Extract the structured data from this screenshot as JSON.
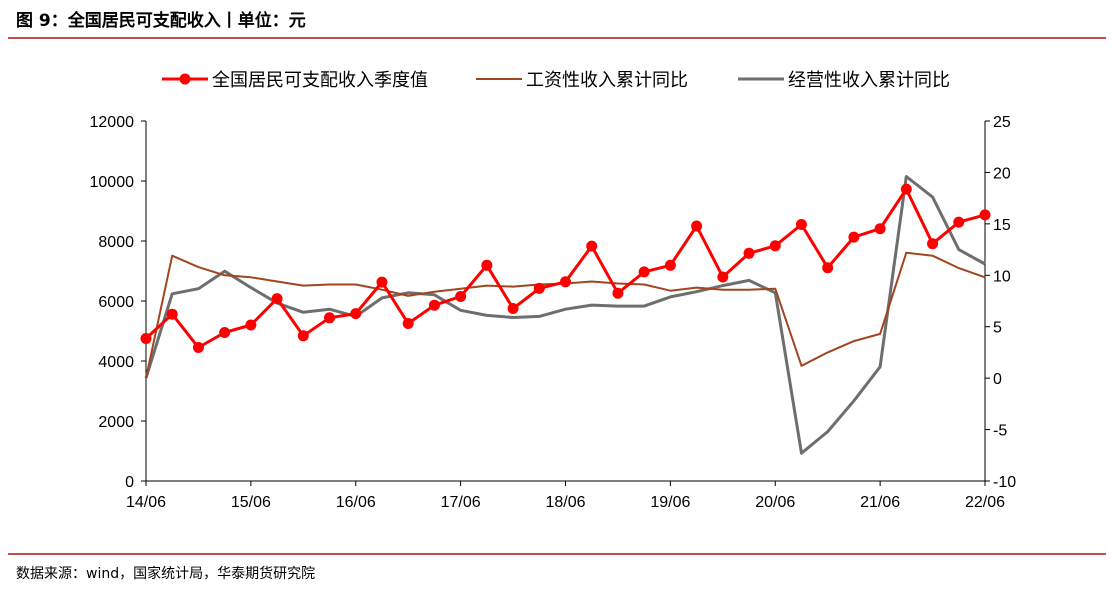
{
  "figure": {
    "title": "图 9：全国居民可支配收入丨单位：元",
    "source": "数据来源：wind，国家统计局，华泰期货研究院"
  },
  "chart_data": {
    "type": "line",
    "title": "",
    "xlabel": "",
    "ylabel": "",
    "x_tick_labels": [
      "14/06",
      "15/06",
      "16/06",
      "17/06",
      "18/06",
      "19/06",
      "20/06",
      "21/06",
      "22/06"
    ],
    "left_axis": {
      "ylim": [
        0,
        12000
      ],
      "ticks": [
        "0",
        "2000",
        "4000",
        "6000",
        "8000",
        "10000",
        "12000"
      ]
    },
    "right_axis": {
      "ylim": [
        -10,
        25
      ],
      "ticks": [
        "-10",
        "-5",
        "0",
        "5",
        "10",
        "15",
        "20",
        "25"
      ]
    },
    "grid": false,
    "legend_position": "top",
    "quarters": [
      "2014Q2",
      "2014Q3",
      "2014Q4",
      "2015Q1",
      "2015Q2",
      "2015Q3",
      "2015Q4",
      "2016Q1",
      "2016Q2",
      "2016Q3",
      "2016Q4",
      "2017Q1",
      "2017Q2",
      "2017Q3",
      "2017Q4",
      "2018Q1",
      "2018Q2",
      "2018Q3",
      "2018Q4",
      "2019Q1",
      "2019Q2",
      "2019Q3",
      "2019Q4",
      "2020Q1",
      "2020Q2",
      "2020Q3",
      "2020Q4",
      "2021Q1",
      "2021Q2",
      "2021Q3",
      "2021Q4",
      "2022Q1",
      "2022Q2"
    ],
    "series": [
      {
        "name": "全国居民可支配收入季度值",
        "axis": "left",
        "color": "#ff0000",
        "markers": true,
        "values": [
          4750,
          5560,
          4450,
          4950,
          5200,
          6080,
          4840,
          5440,
          5580,
          6630,
          5250,
          5860,
          6150,
          7190,
          5750,
          6420,
          6640,
          7830,
          6260,
          6970,
          7190,
          8500,
          6800,
          7590,
          7840,
          8550,
          7110,
          8130,
          8410,
          9730,
          7910,
          8630,
          8870
        ]
      },
      {
        "name": "工资性收入累计同比",
        "axis": "right",
        "color": "#a0461e",
        "markers": false,
        "values": [
          0.0,
          11.9,
          10.8,
          10.0,
          9.8,
          9.4,
          9.0,
          9.1,
          9.1,
          8.6,
          8.0,
          8.4,
          8.7,
          9.0,
          8.9,
          9.1,
          9.2,
          9.4,
          9.2,
          9.1,
          8.5,
          8.8,
          8.6,
          8.6,
          8.7,
          1.2,
          2.5,
          3.6,
          4.3,
          12.2,
          11.9,
          10.7,
          9.8
        ]
      },
      {
        "name": "经营性收入累计同比",
        "axis": "right",
        "color": "#6e6e6e",
        "markers": false,
        "values": [
          0.0,
          8.2,
          8.7,
          10.4,
          8.8,
          7.3,
          6.4,
          6.7,
          6.0,
          7.8,
          8.3,
          8.1,
          6.6,
          6.1,
          5.9,
          6.0,
          6.7,
          7.1,
          7.0,
          7.0,
          7.9,
          8.4,
          9.0,
          9.5,
          8.3,
          -7.3,
          -5.2,
          -2.2,
          1.1,
          19.6,
          17.6,
          12.5,
          11.1
        ]
      }
    ]
  }
}
